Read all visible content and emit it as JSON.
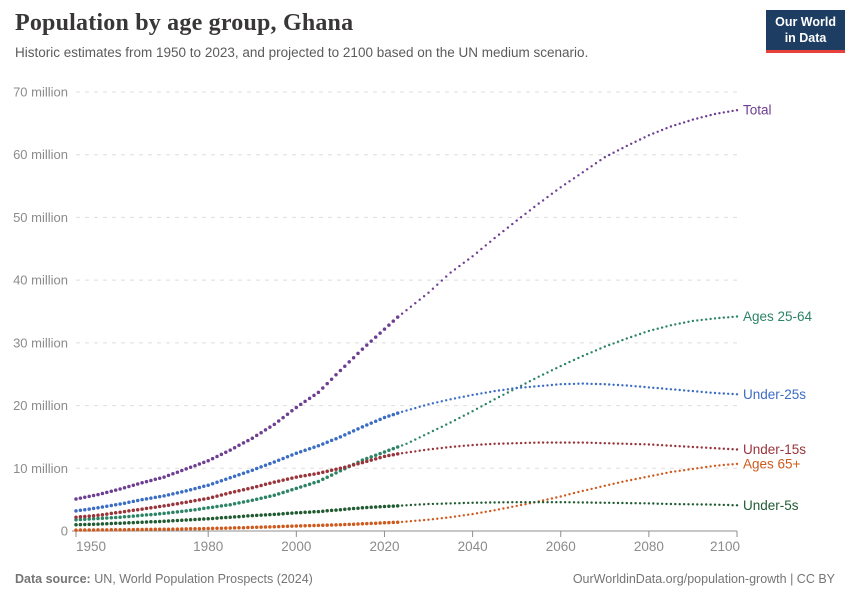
{
  "header": {
    "title": "Population by age group, Ghana",
    "subtitle": "Historic estimates from 1950 to 2023, and projected to 2100 based on the UN medium scenario."
  },
  "logo": {
    "line1": "Our World",
    "line2": "in Data",
    "bg_color": "#1d3d63",
    "accent_color": "#e8403a"
  },
  "footer": {
    "datasource_label": "Data source:",
    "datasource_text": " UN, World Population Prospects (2024)",
    "link_text": "OurWorldinData.org/population-growth | CC BY"
  },
  "chart_data": {
    "type": "line",
    "title": "Population by age group, Ghana",
    "unit": "million",
    "ylim": [
      0,
      70
    ],
    "yticks": [
      0,
      10,
      20,
      30,
      40,
      50,
      60,
      70
    ],
    "ytick_suffix": " million",
    "xticks": [
      1950,
      1980,
      2000,
      2020,
      2040,
      2060,
      2080,
      2100
    ],
    "xlim": [
      1950,
      2100
    ],
    "grid": true,
    "legend_position": "end-of-line-labels",
    "projection_start": 2023,
    "line_style": {
      "historic": "dense beaded dots",
      "projected": "sparse dotted"
    },
    "x": [
      1950,
      1955,
      1960,
      1965,
      1970,
      1975,
      1980,
      1985,
      1990,
      1995,
      2000,
      2005,
      2010,
      2015,
      2020,
      2023,
      2025,
      2030,
      2035,
      2040,
      2045,
      2050,
      2055,
      2060,
      2065,
      2070,
      2075,
      2080,
      2085,
      2090,
      2095,
      2100
    ],
    "series": [
      {
        "name": "Total",
        "color": "#6D3E91",
        "values": [
          5.1,
          5.8,
          6.7,
          7.7,
          8.6,
          9.9,
          11.2,
          12.9,
          14.8,
          17.0,
          19.7,
          22.1,
          25.6,
          29.0,
          32.2,
          34.1,
          35.2,
          38.0,
          41.2,
          43.8,
          46.7,
          49.5,
          52.2,
          54.8,
          57.2,
          59.6,
          61.4,
          63.1,
          64.5,
          65.6,
          66.5,
          67.1
        ]
      },
      {
        "name": "Ages 25-64",
        "color": "#2C8465",
        "values": [
          1.8,
          2.0,
          2.2,
          2.5,
          2.8,
          3.2,
          3.7,
          4.2,
          4.9,
          5.7,
          6.8,
          7.9,
          9.6,
          11.3,
          12.6,
          13.4,
          13.9,
          15.6,
          17.3,
          19.1,
          21.0,
          22.8,
          24.6,
          26.3,
          27.9,
          29.4,
          30.7,
          31.9,
          32.8,
          33.5,
          33.9,
          34.2
        ]
      },
      {
        "name": "Under-25s",
        "color": "#3C6DC4",
        "values": [
          3.2,
          3.7,
          4.3,
          5.0,
          5.6,
          6.4,
          7.3,
          8.5,
          9.7,
          11.0,
          12.4,
          13.6,
          15.0,
          16.6,
          18.1,
          18.8,
          19.2,
          20.2,
          21.0,
          21.7,
          22.3,
          22.8,
          23.1,
          23.4,
          23.5,
          23.4,
          23.2,
          22.9,
          22.6,
          22.3,
          22.0,
          21.8
        ]
      },
      {
        "name": "Under-15s",
        "color": "#98343A",
        "values": [
          2.2,
          2.5,
          3.0,
          3.5,
          4.0,
          4.6,
          5.2,
          6.1,
          6.9,
          7.8,
          8.6,
          9.2,
          10.0,
          10.9,
          11.9,
          12.3,
          12.5,
          13.0,
          13.4,
          13.7,
          13.9,
          14.0,
          14.1,
          14.1,
          14.1,
          14.0,
          13.9,
          13.8,
          13.6,
          13.4,
          13.2,
          13.0
        ]
      },
      {
        "name": "Ages 65+",
        "color": "#CE5A1D",
        "values": [
          0.15,
          0.17,
          0.2,
          0.24,
          0.28,
          0.33,
          0.4,
          0.48,
          0.57,
          0.68,
          0.8,
          0.9,
          1.0,
          1.15,
          1.3,
          1.4,
          1.5,
          1.8,
          2.2,
          2.7,
          3.3,
          4.0,
          4.7,
          5.5,
          6.4,
          7.2,
          8.0,
          8.7,
          9.4,
          9.9,
          10.4,
          10.7
        ]
      },
      {
        "name": "Under-5s",
        "color": "#205B32",
        "values": [
          1.0,
          1.1,
          1.25,
          1.4,
          1.55,
          1.75,
          1.95,
          2.2,
          2.45,
          2.65,
          2.9,
          3.1,
          3.4,
          3.7,
          3.9,
          4.0,
          4.1,
          4.3,
          4.4,
          4.5,
          4.55,
          4.6,
          4.6,
          4.6,
          4.55,
          4.5,
          4.45,
          4.4,
          4.3,
          4.25,
          4.2,
          4.1
        ]
      }
    ]
  },
  "axis_colors": {
    "grid": "#dddddd",
    "axis": "#8f8f8f",
    "tick_label": "#8b8b8b"
  }
}
